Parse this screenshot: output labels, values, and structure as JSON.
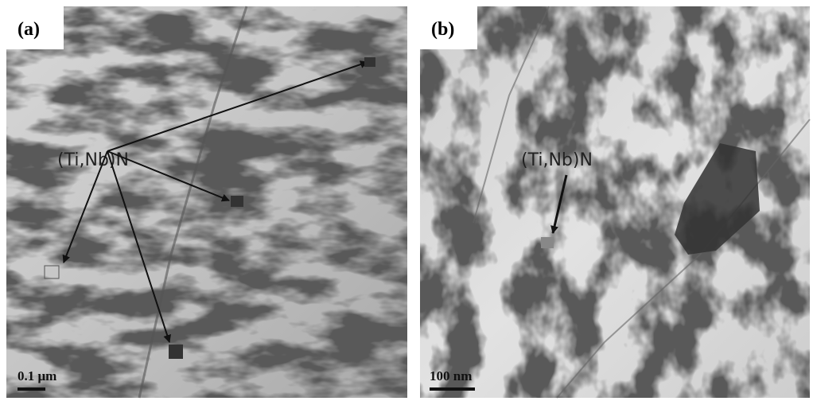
{
  "panels": [
    {
      "label": "(a)",
      "annotation": "(Ti,Nb)N",
      "scale_bar": "0.1 μm"
    },
    {
      "label": "(b)",
      "annotation": "(Ti,Nb)N",
      "scale_bar": "100 nm"
    }
  ]
}
